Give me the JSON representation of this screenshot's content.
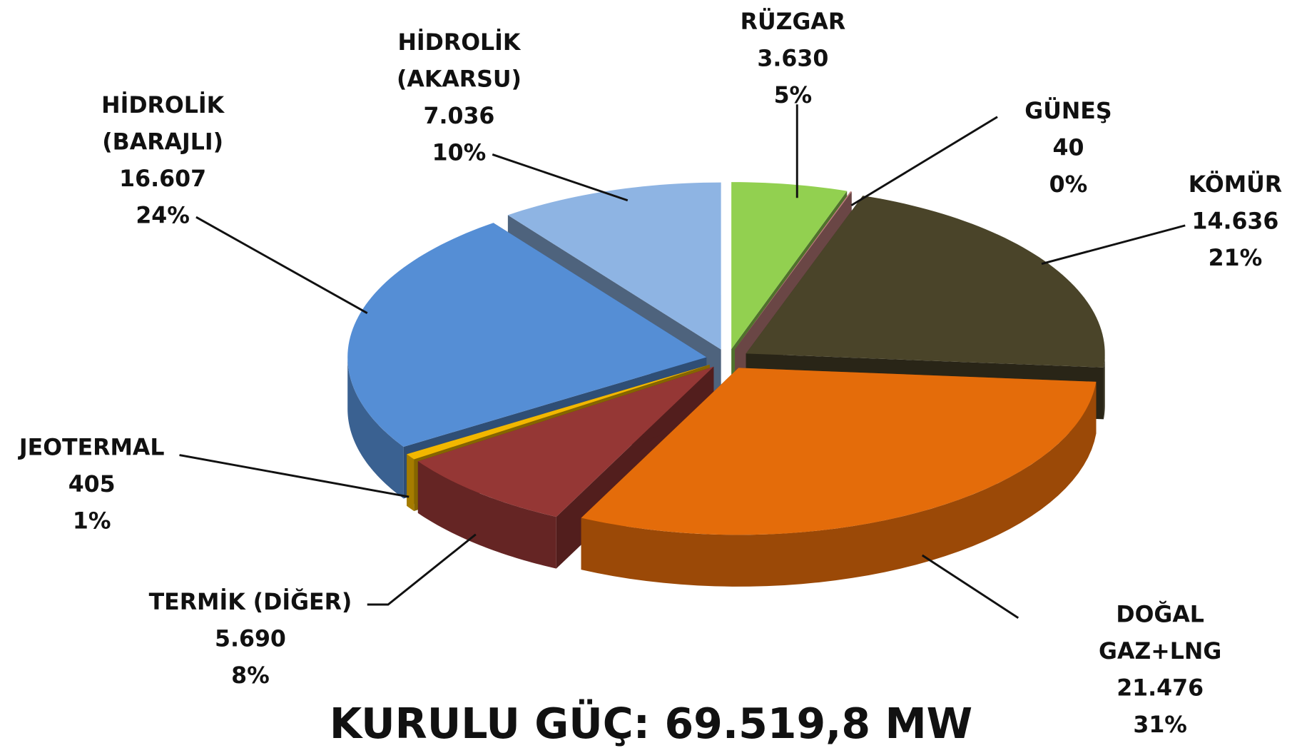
{
  "chart_data": {
    "type": "pie3d",
    "title": "KURULU GÜÇ: 69.519,8 MW",
    "categories": [
      "RÜZGAR",
      "GÜNEŞ",
      "KÖMÜR",
      "DOĞAL GAZ+LNG",
      "TERMİK (DİĞER)",
      "JEOTERMAL",
      "HİDROLİK\n(BARAJLI)",
      "HİDROLİK\n(AKARSU)"
    ],
    "values": [
      3630,
      40,
      14636,
      21476,
      5690,
      405,
      16607,
      7036
    ],
    "value_labels": [
      "3.630",
      "40",
      "14.636",
      "21.476",
      "5.690",
      "405",
      "16.607",
      "7.036"
    ],
    "percents": [
      5,
      0,
      21,
      31,
      8,
      1,
      24,
      10
    ],
    "percent_labels": [
      "5%",
      "0%",
      "21%",
      "31%",
      "8%",
      "1%",
      "24%",
      "10%"
    ],
    "colors": [
      "#92d050",
      "#c0807e",
      "#4a4429",
      "#e46c0a",
      "#953735",
      "#f2b700",
      "#558ed5",
      "#8eb4e3"
    ]
  }
}
